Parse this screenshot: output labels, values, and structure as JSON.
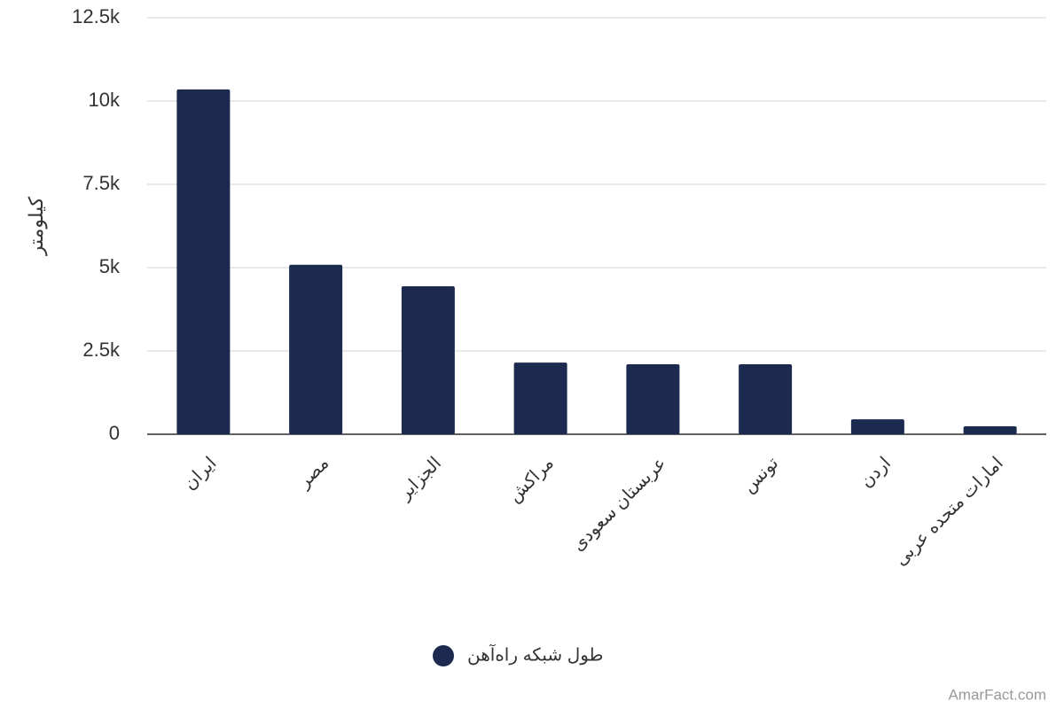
{
  "chart_data": {
    "type": "bar",
    "y_label": "کیلومتر",
    "categories": [
      "ایران",
      "مصر",
      "الجزایر",
      "مراکش",
      "عربستان سعودی",
      "تونس",
      "اردن",
      "امارات متحده عربی"
    ],
    "series": [
      {
        "name": "طول شبکه راه‌آهن",
        "color": "#1b2a4e",
        "values": [
          10350,
          5085,
          4440,
          2150,
          2100,
          2100,
          450,
          240
        ]
      }
    ],
    "ylim": [
      0,
      12500
    ],
    "yticks": [
      0,
      {
        "value": 2500,
        "label": "2.5k"
      },
      {
        "value": 5000,
        "label": "5k"
      },
      {
        "value": 7500,
        "label": "7.5k"
      },
      {
        "value": 10000,
        "label": "10k"
      },
      {
        "value": 12500,
        "label": "12.5k"
      }
    ],
    "grid": true,
    "legend": "bottom",
    "watermark": "AmarFact.com"
  }
}
